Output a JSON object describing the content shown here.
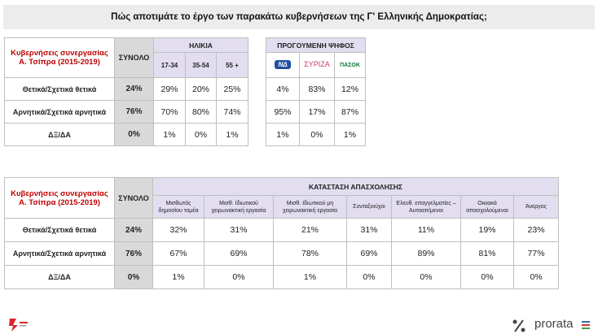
{
  "header": {
    "title": "Πώς αποτιμάτε το έργο των παρακάτω κυβερνήσεων της Γ' Ελληνικής Δημοκρατίας;"
  },
  "table1": {
    "row_header": "Κυβερνήσεις συνεργασίας Α. Τσίπρα (2015-2019)",
    "total_header": "ΣΥΝΟΛΟ",
    "groups": [
      "ΗΛΙΚΙΑ",
      "ΠΡΟΓΟΥΜΕΝΗ ΨΗΦΟΣ"
    ],
    "columns": [
      "17-34",
      "35-54",
      "55 +",
      "ΝΔ",
      "ΣΥΡΙΖΑ",
      "ΠΑΣΟΚ"
    ],
    "rows": [
      {
        "label": "Θετικά/Σχετικά θετικά",
        "values": [
          "24%",
          "29%",
          "20%",
          "25%",
          "4%",
          "83%",
          "12%"
        ]
      },
      {
        "label": "Αρνητικά/Σχετικά αρνητικά",
        "values": [
          "76%",
          "70%",
          "80%",
          "74%",
          "95%",
          "17%",
          "87%"
        ]
      },
      {
        "label": "ΔΞ/ΔΑ",
        "values": [
          "0%",
          "1%",
          "0%",
          "1%",
          "1%",
          "0%",
          "1%"
        ]
      }
    ]
  },
  "table2": {
    "row_header": "Κυβερνήσεις συνεργασίας Α. Τσίπρα (2015-2019)",
    "total_header": "ΣΥΝΟΛΟ",
    "group": "ΚΑΤΑΣΤΑΣΗ ΑΠΑΣΧΟΛΗΣΗΣ",
    "columns": [
      "Μισθωτός δημοσίου τομέα",
      "Μισθ. Ιδιωτικού χειρωνακτική εργασία",
      "Μισθ. Ιδιωτικού μη χειρωνακτική εργασία",
      "Συνταξιούχοι",
      "Ελευθ. επαγγελματίες – Αυτοαπ/μενοι",
      "Οικιακά απασχολούμενοι",
      "Άνεργος"
    ],
    "rows": [
      {
        "label": "Θετικά/Σχετικά θετικά",
        "values": [
          "24%",
          "32%",
          "31%",
          "21%",
          "31%",
          "11%",
          "19%",
          "23%"
        ]
      },
      {
        "label": "Αρνητικά/Σχετικά αρνητικά",
        "values": [
          "76%",
          "67%",
          "69%",
          "78%",
          "69%",
          "89%",
          "81%",
          "77%"
        ]
      },
      {
        "label": "ΔΞ/ΔΑ",
        "values": [
          "0%",
          "1%",
          "0%",
          "1%",
          "0%",
          "0%",
          "0%",
          "0%"
        ]
      }
    ]
  },
  "footer": {
    "brand": "prorata"
  }
}
